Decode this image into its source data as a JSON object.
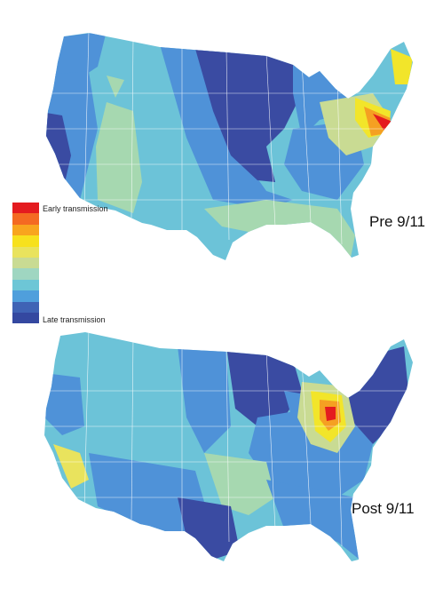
{
  "legend": {
    "early_label": "Early transmission",
    "late_label": "Late transmission",
    "scale_colors": [
      "#e41b1f",
      "#f46a22",
      "#f8a51e",
      "#f7e11d",
      "#e9e35d",
      "#c9db93",
      "#9fd6c1",
      "#6dc6d6",
      "#4f9fdc",
      "#3f63b5",
      "#3448a0"
    ]
  },
  "panels": [
    {
      "label": "Pre 9/11"
    },
    {
      "label": "Post 9/11"
    }
  ],
  "colors": {
    "dark_blue": "#3a4ba2",
    "mid_blue": "#4f92d8",
    "light_blue": "#6cc3d8",
    "green": "#a6d8b0",
    "yellow": "#f2e52a",
    "orange": "#f5a022",
    "red": "#e41b1f",
    "state_border": "#ffffff"
  }
}
